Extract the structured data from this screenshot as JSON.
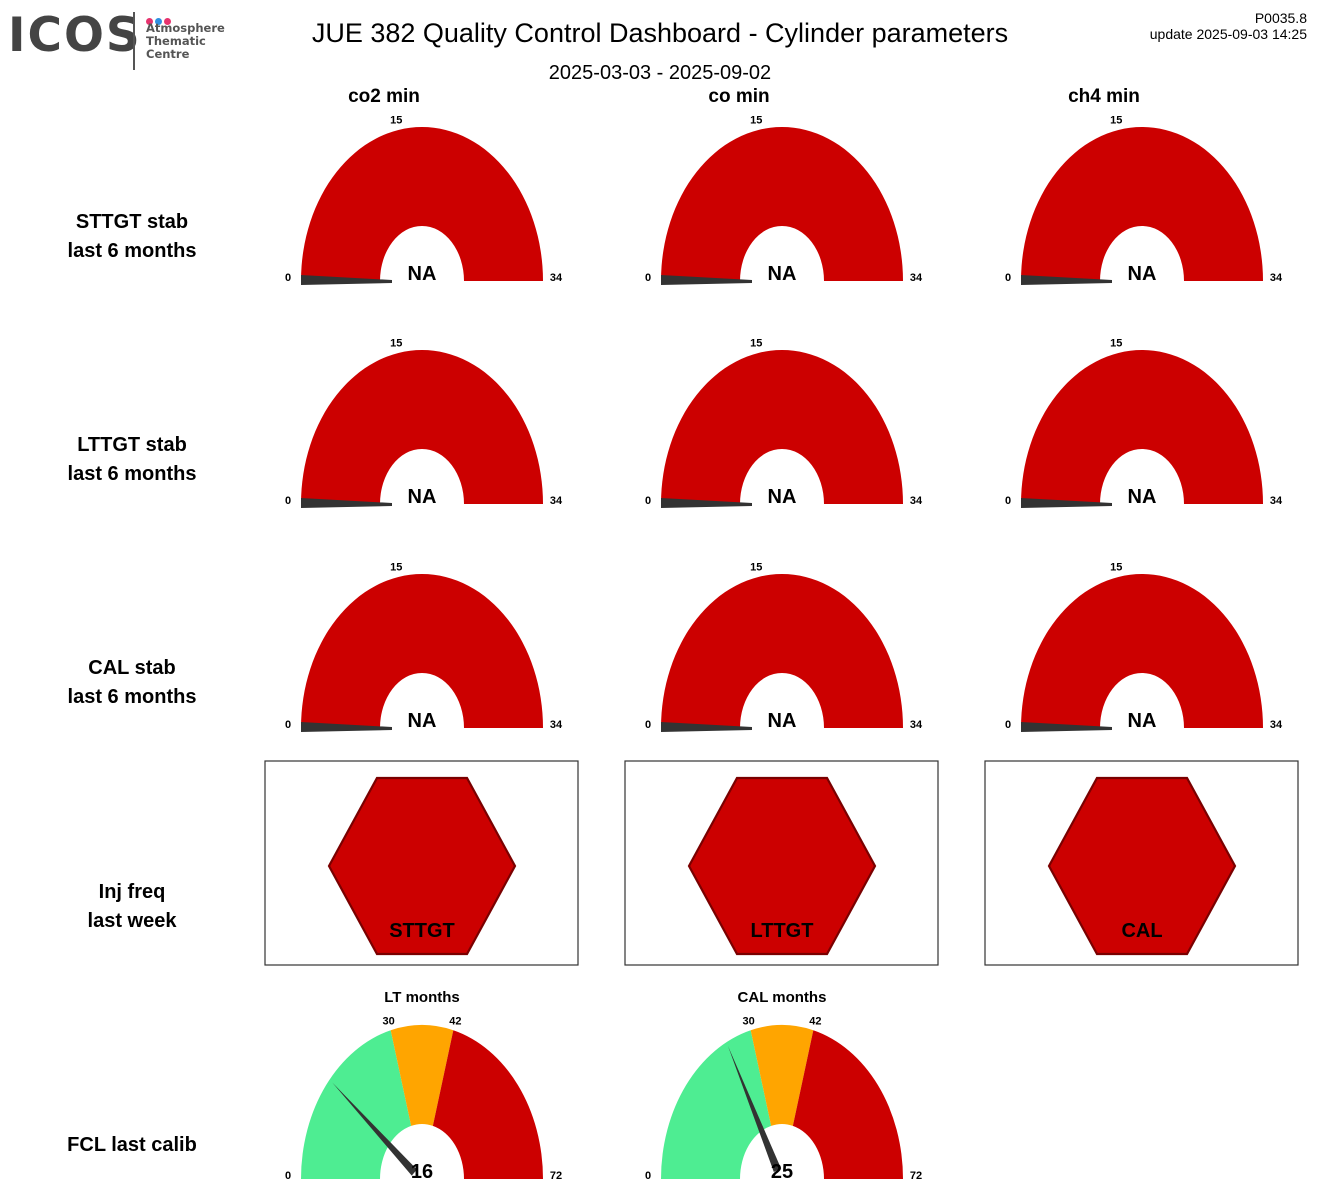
{
  "logo": {
    "mark": "ICOS",
    "lines": [
      "Atmosphere",
      "Thematic",
      "Centre"
    ],
    "dot_colors": [
      "#e6336e",
      "#2f8fe0",
      "#e6336e"
    ]
  },
  "header": {
    "title": "JUE 382 Quality Control Dashboard - Cylinder parameters",
    "date_range": "2025-03-03 - 2025-09-02",
    "code": "P0035.8",
    "update": "update  2025-09-03 14:25"
  },
  "columns": [
    "co2 min",
    "co min",
    "ch4 min"
  ],
  "row_labels": [
    [
      "STTGT stab",
      "last 6 months"
    ],
    [
      "LTTGT stab",
      "last 6 months"
    ],
    [
      "CAL stab",
      "last 6 months"
    ],
    [
      "Inj freq",
      "last week"
    ],
    [
      "FCL last calib"
    ]
  ],
  "colors": {
    "red": "#cc0000",
    "orange": "#ffa500",
    "green": "#4eed92",
    "needle": "#333333",
    "hex_border": "#7a0000"
  },
  "chart_data": [
    {
      "type": "gauge_grid",
      "rows": [
        "STTGT stab",
        "LTTGT stab",
        "CAL stab"
      ],
      "columns": [
        "co2 min",
        "co min",
        "ch4 min"
      ],
      "min": 0,
      "max": 34,
      "threshold_label": 15,
      "bands": [
        {
          "from": 0,
          "to": 34,
          "color": "red"
        }
      ],
      "value": null,
      "value_label": "NA"
    },
    {
      "type": "status_hexagons",
      "items": [
        {
          "label": "STTGT",
          "status": "red"
        },
        {
          "label": "LTTGT",
          "status": "red"
        },
        {
          "label": "CAL",
          "status": "red"
        }
      ]
    },
    {
      "type": "gauges",
      "items": [
        {
          "title": "LT months",
          "min": 0,
          "max": 72,
          "thresholds": [
            30,
            42
          ],
          "value": 16,
          "bands": [
            {
              "from": 0,
              "to": 30,
              "color": "green"
            },
            {
              "from": 30,
              "to": 42,
              "color": "orange"
            },
            {
              "from": 42,
              "to": 72,
              "color": "red"
            }
          ]
        },
        {
          "title": "CAL months",
          "min": 0,
          "max": 72,
          "thresholds": [
            30,
            42
          ],
          "value": 25,
          "bands": [
            {
              "from": 0,
              "to": 30,
              "color": "green"
            },
            {
              "from": 30,
              "to": 42,
              "color": "orange"
            },
            {
              "from": 42,
              "to": 72,
              "color": "red"
            }
          ]
        }
      ]
    }
  ]
}
